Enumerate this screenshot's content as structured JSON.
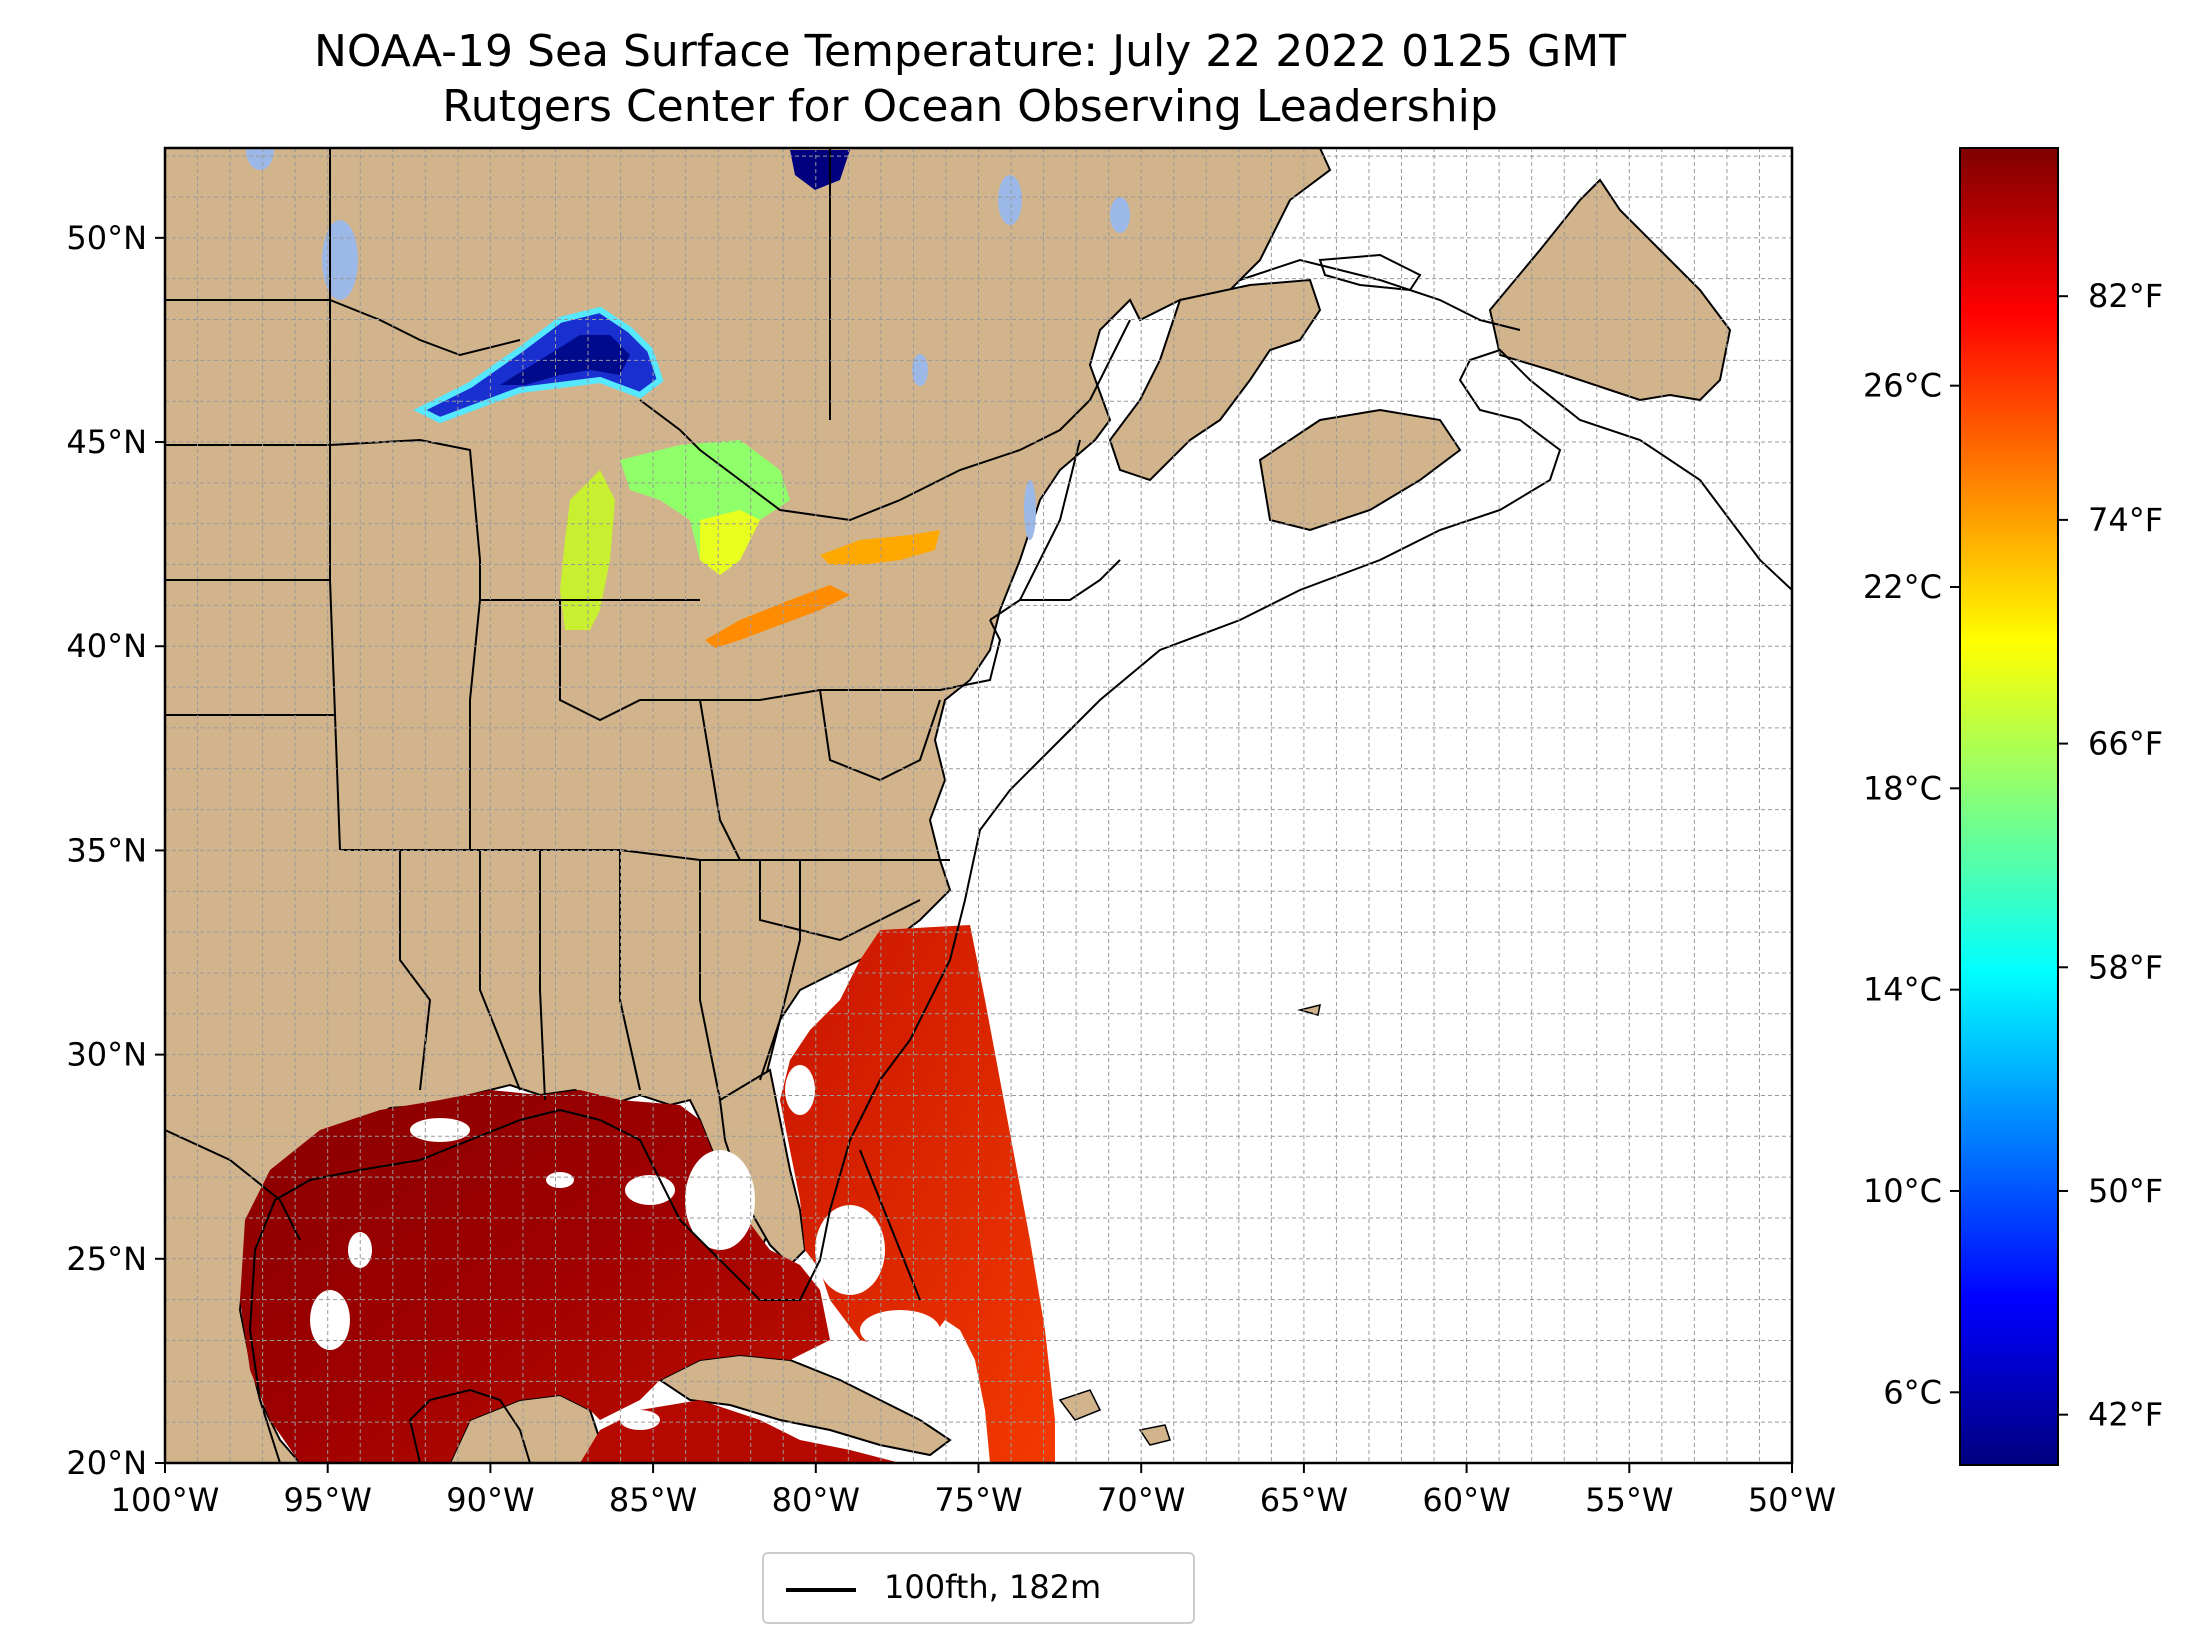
{
  "title": {
    "line1": "NOAA-19 Sea Surface Temperature: July 22 2022 0125 GMT",
    "line2": "Rutgers Center for Ocean Observing Leadership"
  },
  "map": {
    "extent": {
      "lon": [
        -100,
        -50
      ],
      "lat": [
        20,
        52.2
      ]
    },
    "land_color": "#d2b48c",
    "ocean_no_data_color": "#ffffff",
    "lake_color": "#9bb8e6",
    "grid": true,
    "lon_ticks": [
      {
        "lon": -100,
        "label": "100°W"
      },
      {
        "lon": -95,
        "label": "95°W"
      },
      {
        "lon": -90,
        "label": "90°W"
      },
      {
        "lon": -85,
        "label": "85°W"
      },
      {
        "lon": -80,
        "label": "80°W"
      },
      {
        "lon": -75,
        "label": "75°W"
      },
      {
        "lon": -70,
        "label": "70°W"
      },
      {
        "lon": -65,
        "label": "65°W"
      },
      {
        "lon": -60,
        "label": "60°W"
      },
      {
        "lon": -55,
        "label": "55°W"
      },
      {
        "lon": -50,
        "label": "50°W"
      }
    ],
    "lat_ticks": [
      {
        "lat": 20,
        "label": "20°N"
      },
      {
        "lat": 25,
        "label": "25°N"
      },
      {
        "lat": 30,
        "label": "30°N"
      },
      {
        "lat": 35,
        "label": "35°N"
      },
      {
        "lat": 40,
        "label": "40°N"
      },
      {
        "lat": 45,
        "label": "45°N"
      },
      {
        "lat": 50,
        "label": "50°N"
      }
    ]
  },
  "colorbar": {
    "colormap": "jet",
    "range_f": [
      40.2,
      87.3
    ],
    "fahrenheit_ticks": [
      {
        "value": 42,
        "label": "42°F"
      },
      {
        "value": 50,
        "label": "50°F"
      },
      {
        "value": 58,
        "label": "58°F"
      },
      {
        "value": 66,
        "label": "66°F"
      },
      {
        "value": 74,
        "label": "74°F"
      },
      {
        "value": 82,
        "label": "82°F"
      }
    ],
    "celsius_ticks": [
      {
        "value": 6,
        "label": "6°C"
      },
      {
        "value": 10,
        "label": "10°C"
      },
      {
        "value": 14,
        "label": "14°C"
      },
      {
        "value": 18,
        "label": "18°C"
      },
      {
        "value": 22,
        "label": "22°C"
      },
      {
        "value": 26,
        "label": "26°C"
      }
    ],
    "stops": [
      "#00007f",
      "#0000ff",
      "#007fff",
      "#00ffff",
      "#7fff7f",
      "#ffff00",
      "#ff7f00",
      "#ff0000",
      "#7f0000"
    ]
  },
  "legend": {
    "label": "100fth, 182m",
    "line_color": "#000000"
  }
}
